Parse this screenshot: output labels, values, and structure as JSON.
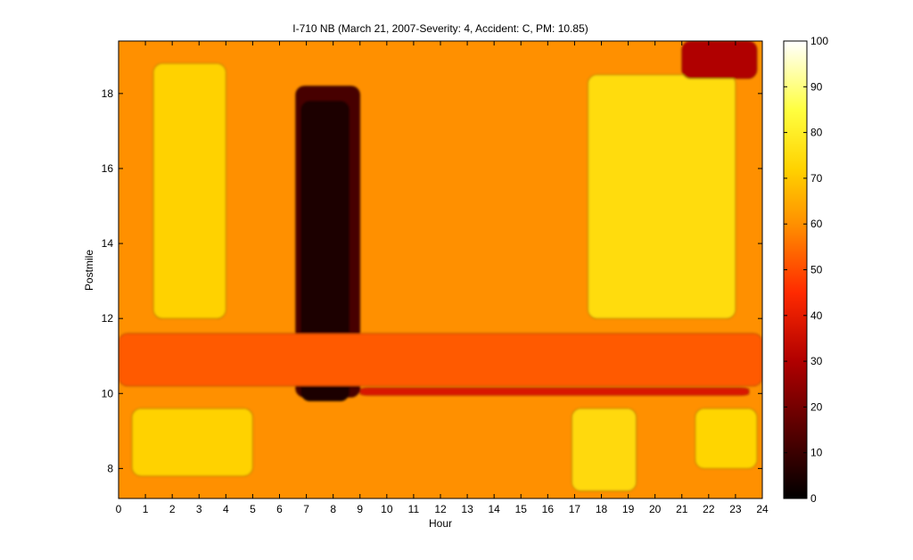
{
  "chart_data": {
    "type": "heatmap",
    "title": "I-710 NB (March 21, 2007-Severity: 4, Accident: C, PM: 10.85)",
    "xlabel": "Hour",
    "ylabel": "Postmile",
    "xlim": [
      0,
      24
    ],
    "ylim": [
      7.2,
      19.4
    ],
    "xticks": [
      0,
      1,
      2,
      3,
      4,
      5,
      6,
      7,
      8,
      9,
      10,
      11,
      12,
      13,
      14,
      15,
      16,
      17,
      18,
      19,
      20,
      21,
      22,
      23,
      24
    ],
    "yticks": [
      8,
      10,
      12,
      14,
      16,
      18
    ],
    "colorbar": {
      "range": [
        0,
        100
      ],
      "ticks": [
        0,
        10,
        20,
        30,
        40,
        50,
        60,
        70,
        80,
        90,
        100
      ],
      "colormap": "hot",
      "colors": [
        "#000000",
        "#7a0000",
        "#ff0000",
        "#ff9900",
        "#ffff00",
        "#ffffff"
      ]
    },
    "grid": false,
    "background_level": 60,
    "features": [
      {
        "name": "AM congestion",
        "x": [
          6.6,
          9.0
        ],
        "y": [
          9.9,
          18.2
        ],
        "level": 12
      },
      {
        "name": "AM congestion core",
        "x": [
          6.8,
          8.6
        ],
        "y": [
          9.8,
          17.8
        ],
        "level": 5
      },
      {
        "name": "Congestion at accident postmile",
        "x": [
          9.0,
          23.5
        ],
        "y": [
          9.95,
          10.15
        ],
        "level": 38
      },
      {
        "name": "Slow band",
        "x": [
          0,
          24
        ],
        "y": [
          10.2,
          11.6
        ],
        "level": 52
      },
      {
        "name": "Free flow north (morning)",
        "x": [
          1.3,
          4.0
        ],
        "y": [
          12.0,
          18.8
        ],
        "level": 72
      },
      {
        "name": "Free flow north (evening)",
        "x": [
          17.5,
          23.0
        ],
        "y": [
          12.0,
          18.5
        ],
        "level": 75
      },
      {
        "name": "Free flow south (night)",
        "x": [
          0.5,
          5.0
        ],
        "y": [
          7.8,
          9.6
        ],
        "level": 72
      },
      {
        "name": "Free flow south (evening)",
        "x": [
          16.9,
          19.3
        ],
        "y": [
          7.4,
          9.6
        ],
        "level": 74
      },
      {
        "name": "Free flow south (late)",
        "x": [
          21.5,
          23.8
        ],
        "y": [
          8.0,
          9.6
        ],
        "level": 73
      },
      {
        "name": "Late evening slowdown",
        "x": [
          21.0,
          23.8
        ],
        "y": [
          18.4,
          19.4
        ],
        "level": 30
      }
    ]
  }
}
